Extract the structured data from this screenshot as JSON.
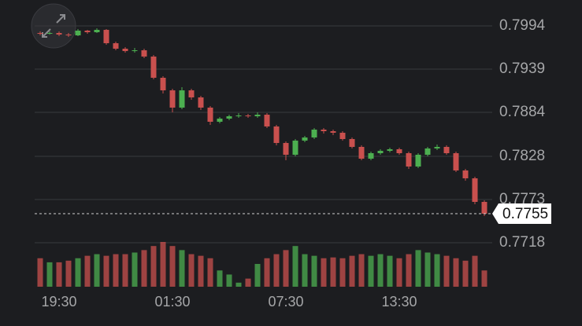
{
  "chart_data": {
    "type": "candlestick",
    "categories": [
      null,
      null,
      "19:30",
      null,
      null,
      null,
      null,
      null,
      null,
      null,
      null,
      null,
      null,
      null,
      "01:30",
      null,
      null,
      null,
      null,
      null,
      null,
      null,
      null,
      null,
      null,
      null,
      "07:30",
      null,
      null,
      null,
      null,
      null,
      null,
      null,
      null,
      null,
      null,
      null,
      "13:30",
      null,
      null,
      null,
      null,
      null,
      null,
      null,
      null,
      null
    ],
    "open": [
      0.7985,
      0.7984,
      0.7985,
      0.7983,
      0.7982,
      0.7988,
      0.7986,
      0.7989,
      0.7972,
      0.7965,
      0.7962,
      0.7963,
      0.7955,
      0.7928,
      0.7912,
      0.789,
      0.7912,
      0.7903,
      0.789,
      0.7872,
      0.7876,
      0.7879,
      0.788,
      0.7879,
      0.7881,
      0.7866,
      0.7845,
      0.783,
      0.7848,
      0.7852,
      0.7862,
      0.786,
      0.7858,
      0.785,
      0.784,
      0.7825,
      0.7832,
      0.7835,
      0.7837,
      0.7832,
      0.7815,
      0.783,
      0.7838,
      0.784,
      0.7832,
      0.781,
      0.78,
      0.777
    ],
    "high": [
      0.7987,
      0.7987,
      0.7987,
      0.7985,
      0.799,
      0.7989,
      0.7991,
      0.799,
      0.7974,
      0.7967,
      0.7966,
      0.7965,
      0.7957,
      0.793,
      0.7914,
      0.7916,
      0.7914,
      0.7905,
      0.7892,
      0.7878,
      0.7881,
      0.7883,
      0.7882,
      0.7884,
      0.7883,
      0.7868,
      0.7847,
      0.785,
      0.7854,
      0.7864,
      0.7864,
      0.7862,
      0.786,
      0.7852,
      0.7842,
      0.7834,
      0.7837,
      0.7839,
      0.7839,
      0.7834,
      0.7832,
      0.784,
      0.7843,
      0.7842,
      0.7834,
      0.7812,
      0.7802,
      0.7772
    ],
    "low": [
      0.7982,
      0.7983,
      0.7981,
      0.798,
      0.7981,
      0.7984,
      0.7985,
      0.797,
      0.7963,
      0.796,
      0.796,
      0.7953,
      0.7926,
      0.7908,
      0.7884,
      0.7888,
      0.79,
      0.7887,
      0.7868,
      0.787,
      0.7874,
      0.7877,
      0.7877,
      0.7877,
      0.7864,
      0.7842,
      0.7823,
      0.7828,
      0.7846,
      0.785,
      0.7857,
      0.7855,
      0.7848,
      0.7838,
      0.7823,
      0.7823,
      0.783,
      0.7833,
      0.783,
      0.7812,
      0.7813,
      0.7828,
      0.7836,
      0.783,
      0.7808,
      0.7797,
      0.7767,
      0.7752
    ],
    "close": [
      0.7984,
      0.7985,
      0.7983,
      0.7982,
      0.7988,
      0.7986,
      0.7989,
      0.7972,
      0.7965,
      0.7962,
      0.7963,
      0.7955,
      0.7928,
      0.7912,
      0.789,
      0.7912,
      0.7903,
      0.789,
      0.7872,
      0.7876,
      0.7879,
      0.788,
      0.7879,
      0.7881,
      0.7866,
      0.7845,
      0.783,
      0.7848,
      0.7852,
      0.7862,
      0.786,
      0.7858,
      0.785,
      0.784,
      0.7825,
      0.7832,
      0.7835,
      0.7837,
      0.7832,
      0.7815,
      0.783,
      0.7838,
      0.784,
      0.7832,
      0.781,
      0.78,
      0.777,
      0.7755
    ],
    "volume": [
      35,
      30,
      30,
      32,
      35,
      38,
      40,
      38,
      40,
      40,
      42,
      45,
      50,
      55,
      50,
      45,
      40,
      38,
      35,
      20,
      15,
      5,
      10,
      28,
      35,
      40,
      45,
      50,
      40,
      38,
      35,
      36,
      35,
      38,
      40,
      38,
      40,
      38,
      35,
      40,
      45,
      42,
      40,
      38,
      35,
      32,
      38,
      20
    ],
    "up_color": "#4caf50",
    "down_color": "#c9504e",
    "ylim": [
      0.77,
      0.8025
    ],
    "yticks": [
      0.7994,
      0.7939,
      0.7884,
      0.7828,
      0.7773,
      0.7718
    ],
    "last_price": 0.7755,
    "grid": true
  }
}
